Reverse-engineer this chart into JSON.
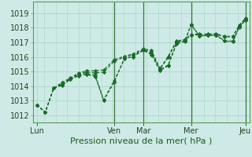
{
  "background_color": "#ceeae6",
  "grid_color": "#b0d8cc",
  "line_color": "#1a6b2a",
  "title": "Pression niveau de la mer( hPa )",
  "ylim": [
    1011.5,
    1019.8
  ],
  "yticks": [
    1012,
    1013,
    1014,
    1015,
    1016,
    1017,
    1018,
    1019
  ],
  "xtick_labels": [
    "Lun",
    "Ven",
    "Mar",
    "Mer",
    "Jeu"
  ],
  "xtick_positions": [
    0,
    37,
    51,
    74,
    100
  ],
  "xlim": [
    -2,
    102
  ],
  "vlines": [
    37,
    51,
    74,
    100
  ],
  "series": [
    [
      [
        0,
        1012.7
      ],
      [
        4,
        1012.2
      ],
      [
        8,
        1013.85
      ],
      [
        12,
        1014.05
      ],
      [
        16,
        1014.45
      ],
      [
        20,
        1014.8
      ],
      [
        24,
        1014.85
      ],
      [
        28,
        1014.75
      ],
      [
        32,
        1013.05
      ],
      [
        37,
        1014.35
      ],
      [
        42,
        1015.85
      ],
      [
        46,
        1016.05
      ],
      [
        51,
        1016.45
      ],
      [
        55,
        1016.25
      ],
      [
        59,
        1015.1
      ],
      [
        63,
        1015.45
      ],
      [
        67,
        1016.95
      ],
      [
        71,
        1017.1
      ],
      [
        74,
        1018.2
      ],
      [
        78,
        1017.45
      ],
      [
        82,
        1017.48
      ],
      [
        86,
        1017.5
      ],
      [
        90,
        1017.12
      ],
      [
        94,
        1017.08
      ],
      [
        97,
        1018.05
      ],
      [
        100,
        1018.55
      ]
    ],
    [
      [
        0,
        1012.7
      ],
      [
        4,
        1012.2
      ],
      [
        8,
        1013.85
      ],
      [
        12,
        1014.15
      ],
      [
        16,
        1014.5
      ],
      [
        20,
        1014.85
      ],
      [
        24,
        1014.95
      ],
      [
        28,
        1014.9
      ],
      [
        32,
        1014.95
      ],
      [
        37,
        1015.7
      ],
      [
        42,
        1016.0
      ],
      [
        46,
        1016.15
      ],
      [
        51,
        1016.5
      ],
      [
        55,
        1016.35
      ],
      [
        59,
        1015.15
      ],
      [
        63,
        1015.95
      ],
      [
        67,
        1017.05
      ],
      [
        71,
        1017.15
      ],
      [
        74,
        1017.5
      ],
      [
        78,
        1017.52
      ],
      [
        82,
        1017.52
      ],
      [
        86,
        1017.55
      ],
      [
        90,
        1017.38
      ],
      [
        94,
        1017.38
      ],
      [
        97,
        1018.12
      ],
      [
        100,
        1018.6
      ]
    ],
    [
      [
        0,
        1012.7
      ],
      [
        4,
        1012.2
      ],
      [
        8,
        1013.85
      ],
      [
        12,
        1014.25
      ],
      [
        16,
        1014.55
      ],
      [
        20,
        1014.9
      ],
      [
        24,
        1015.05
      ],
      [
        28,
        1015.05
      ],
      [
        32,
        1015.1
      ],
      [
        37,
        1015.8
      ],
      [
        42,
        1016.05
      ],
      [
        46,
        1016.2
      ],
      [
        51,
        1016.55
      ],
      [
        55,
        1016.45
      ],
      [
        59,
        1015.2
      ],
      [
        63,
        1016.05
      ],
      [
        67,
        1017.1
      ],
      [
        71,
        1017.2
      ],
      [
        74,
        1017.55
      ],
      [
        78,
        1017.57
      ],
      [
        82,
        1017.57
      ],
      [
        86,
        1017.6
      ],
      [
        90,
        1017.42
      ],
      [
        94,
        1017.42
      ],
      [
        97,
        1018.17
      ],
      [
        100,
        1018.65
      ]
    ],
    [
      [
        0,
        1012.7
      ],
      [
        4,
        1012.2
      ],
      [
        8,
        1013.85
      ],
      [
        12,
        1014.1
      ],
      [
        16,
        1014.45
      ],
      [
        20,
        1014.7
      ],
      [
        24,
        1014.8
      ],
      [
        28,
        1014.65
      ],
      [
        32,
        1013.0
      ],
      [
        37,
        1014.25
      ],
      [
        42,
        1015.9
      ],
      [
        46,
        1016.0
      ],
      [
        51,
        1016.45
      ],
      [
        55,
        1016.15
      ],
      [
        59,
        1015.05
      ],
      [
        63,
        1015.4
      ],
      [
        67,
        1016.9
      ],
      [
        71,
        1017.05
      ],
      [
        74,
        1018.25
      ],
      [
        78,
        1017.42
      ],
      [
        82,
        1017.47
      ],
      [
        86,
        1017.48
      ],
      [
        90,
        1017.08
      ],
      [
        94,
        1017.03
      ],
      [
        97,
        1018.02
      ],
      [
        100,
        1018.5
      ]
    ]
  ]
}
